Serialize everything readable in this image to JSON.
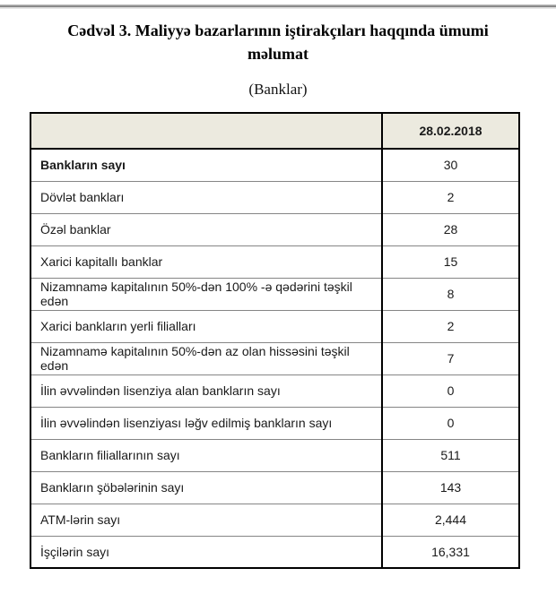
{
  "page": {
    "title": "Cədvəl 3. Maliyyə bazarlarının iştirakçıları haqqında ümumi məlumat",
    "subtitle": "(Banklar)"
  },
  "table": {
    "header": {
      "label": "",
      "date": "28.02.2018"
    },
    "rows": [
      {
        "label": "Bankların sayı",
        "value": "30"
      },
      {
        "label": "Dövlət bankları",
        "value": "2"
      },
      {
        "label": "Özəl banklar",
        "value": "28"
      },
      {
        "label": "Xarici kapitallı banklar",
        "value": "15"
      },
      {
        "label": "Nizamnamə kapitalının 50%-dən 100% -ə qədərini təşkil edən",
        "value": "8"
      },
      {
        "label": "Xarici bankların yerli filialları",
        "value": "2"
      },
      {
        "label": "Nizamnamə kapitalının 50%-dən az olan hissəsini təşkil edən",
        "value": "7"
      },
      {
        "label": "İlin əvvəlindən lisenziya alan bankların sayı",
        "value": "0"
      },
      {
        "label": "İlin əvvəlindən lisenziyası ləğv edilmiş bankların sayı",
        "value": "0"
      },
      {
        "label": "Bankların filiallarının sayı",
        "value": "511"
      },
      {
        "label": "Bankların şöbələrinin sayı",
        "value": "143"
      },
      {
        "label": "ATM-lərin sayı",
        "value": "2,444"
      },
      {
        "label": "İşçilərin sayı",
        "value": "16,331"
      }
    ]
  },
  "colors": {
    "header_bg": "#ECEADF",
    "outer_border": "#000000",
    "inner_line": "#858585",
    "text": "#1a1a1a"
  }
}
